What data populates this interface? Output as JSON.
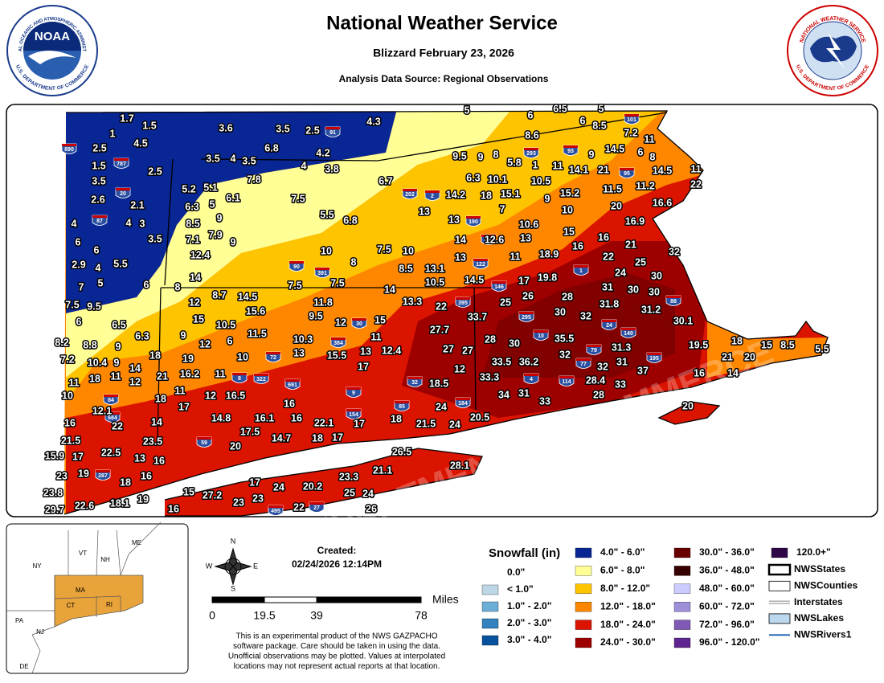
{
  "header": {
    "title": "National Weather Service",
    "subtitle": "Blizzard February 23, 2026",
    "source": "Analysis Data Source: Regional Observations",
    "noaa_logo": {
      "text": "NOAA",
      "ring_top": "NATIONAL OCEANIC AND ATMOSPHERIC ADMINISTRATION",
      "ring_bottom": "U.S. DEPARTMENT OF COMMERCE"
    },
    "nws_logo": {
      "ring_top": "NATIONAL WEATHER SERVICE",
      "ring_bottom": "U.S. DEPARTMENT OF COMMERCE"
    }
  },
  "map": {
    "watermark": "DEPARTMENT OF COMMERCE",
    "observations": [
      1.7,
      1.5,
      1,
      4.5,
      2.5,
      1.5,
      3.5,
      2.5,
      2.6,
      2.1,
      4,
      4,
      3,
      6,
      6,
      3.5,
      2.9,
      4,
      5.5,
      7,
      5,
      6,
      7.5,
      9.5,
      6,
      6.5,
      6.3,
      8.2,
      8.8,
      9,
      7.2,
      10.4,
      9,
      14,
      11,
      18,
      11,
      12,
      10,
      12.1,
      16,
      22,
      14,
      21.5,
      23.5,
      15.9,
      17,
      22.5,
      13,
      16,
      23,
      19,
      18,
      16,
      23.8,
      29.7,
      22.6,
      18.1,
      19,
      16,
      15,
      27.2,
      23,
      17,
      23,
      24,
      20.2,
      22,
      23.3,
      21.1,
      25,
      24,
      26,
      26.5,
      28.1,
      3.6,
      3.5,
      2.5,
      4.3,
      6.8,
      3.5,
      4,
      3.5,
      4.2,
      4,
      3.8,
      7.8,
      5.2,
      5.1,
      6.3,
      5,
      6.1,
      7.5,
      8.5,
      9,
      7.1,
      7.9,
      9,
      12.4,
      5.5,
      6.8,
      6.7,
      10,
      8,
      7.5,
      10,
      8.5,
      13.1,
      10.5,
      14,
      13.3,
      7.5,
      7.5,
      14,
      8,
      8.7,
      14.5,
      12,
      15.6,
      15,
      10.5,
      11.5,
      9,
      12,
      6,
      11.8,
      9.5,
      12,
      15,
      10.3,
      13,
      15.5,
      13,
      12.4,
      11,
      17,
      10,
      18,
      19,
      21,
      16.2,
      11,
      18,
      11,
      17,
      12,
      16.5,
      16,
      14.8,
      16.1,
      16,
      22.1,
      17,
      18,
      17.5,
      20,
      14.7,
      18,
      17,
      5,
      6,
      6.5,
      5,
      6,
      8.6,
      8.5,
      7.2,
      11,
      9,
      14.5,
      6,
      8,
      9.5,
      9,
      8,
      5.8,
      1,
      11,
      14.1,
      21,
      14.5,
      11,
      6.3,
      10.1,
      10.5,
      15.2,
      11.5,
      11.2,
      22,
      14.2,
      18,
      15.1,
      9,
      13,
      13,
      7,
      10,
      20,
      16.6,
      10.6,
      16.9,
      14,
      12.6,
      13,
      15,
      16,
      21,
      13,
      11,
      18.9,
      16,
      32,
      14.5,
      17,
      19.8,
      22,
      25,
      24,
      30,
      22,
      33.7,
      25,
      26,
      30,
      28,
      31,
      30,
      30,
      27.7,
      28,
      30,
      31.8,
      32,
      31.2,
      30.1,
      27,
      27,
      12,
      33.5,
      36.2,
      35.5,
      32,
      31.3,
      33.3,
      32,
      31,
      37,
      19.5,
      18,
      21,
      20,
      15,
      8.5,
      5.5,
      16,
      14,
      28.4,
      33,
      28,
      34,
      31,
      33,
      18.5,
      24,
      21.5,
      24,
      20.5,
      20
    ],
    "interstates": [
      "890",
      "787",
      "20",
      "87",
      "91",
      "293",
      "93",
      "95",
      "101",
      "202",
      "2",
      "190",
      "290",
      "90",
      "391",
      "122",
      "146",
      "395",
      "295",
      "1",
      "88",
      "84",
      "384",
      "691",
      "322",
      "72",
      "8",
      "684",
      "287",
      "59",
      "154",
      "85",
      "184",
      "140",
      "114",
      "4",
      "77",
      "79",
      "24",
      "195",
      "495",
      "27",
      "9",
      "32",
      "30",
      "10"
    ]
  },
  "inset": {
    "states": [
      "ME",
      "VT",
      "NH",
      "NY",
      "MA",
      "CT",
      "RI",
      "PA",
      "NJ",
      "DE"
    ]
  },
  "created": {
    "label": "Created:",
    "timestamp": "02/24/2026 12:14PM"
  },
  "compass": {
    "n": "N",
    "e": "E",
    "s": "S",
    "w": "W"
  },
  "scale_bar": {
    "unit": "Miles",
    "ticks": [
      0,
      19.5,
      39,
      78
    ]
  },
  "disclaimer": [
    "This is an experimental product of the NWS GAZPACHO",
    "software package. Care should be taken in using the data.",
    "Unofficial observations may be plotted. Values at interpolated",
    "locations may not represent actual reports at that location."
  ],
  "legend": {
    "title": "Snowfall (in)",
    "items": [
      {
        "label": "0.0\"",
        "color": "#ffffff"
      },
      {
        "label": "< 1.0\"",
        "color": "#bdd7e7"
      },
      {
        "label": "1.0\" - 2.0\"",
        "color": "#6baed6"
      },
      {
        "label": "2.0\" - 3.0\"",
        "color": "#3182bd"
      },
      {
        "label": "3.0\" - 4.0\"",
        "color": "#08519c"
      },
      {
        "label": "4.0\" - 6.0\"",
        "color": "#082694"
      },
      {
        "label": "6.0\" - 8.0\"",
        "color": "#ffff96"
      },
      {
        "label": "8.0\" - 12.0\"",
        "color": "#ffc400"
      },
      {
        "label": "12.0\" - 18.0\"",
        "color": "#ff8700"
      },
      {
        "label": "18.0\" - 24.0\"",
        "color": "#db1400"
      },
      {
        "label": "24.0\" - 30.0\"",
        "color": "#9e0000"
      },
      {
        "label": "30.0\" - 36.0\"",
        "color": "#690000"
      },
      {
        "label": "36.0\" - 48.0\"",
        "color": "#360000"
      },
      {
        "label": "48.0\" - 60.0\"",
        "color": "#ccccff"
      },
      {
        "label": "60.0\" - 72.0\"",
        "color": "#9f8fd8"
      },
      {
        "label": "72.0\" - 96.0\"",
        "color": "#7f5ab4"
      },
      {
        "label": "96.0\" - 120.0\"",
        "color": "#5e2590"
      },
      {
        "label": "120.0+\"",
        "color": "#2e0646"
      }
    ]
  },
  "layers": [
    "NWSStates",
    "NWSCounties",
    "Interstates",
    "NWSLakes",
    "NWSRivers1"
  ]
}
